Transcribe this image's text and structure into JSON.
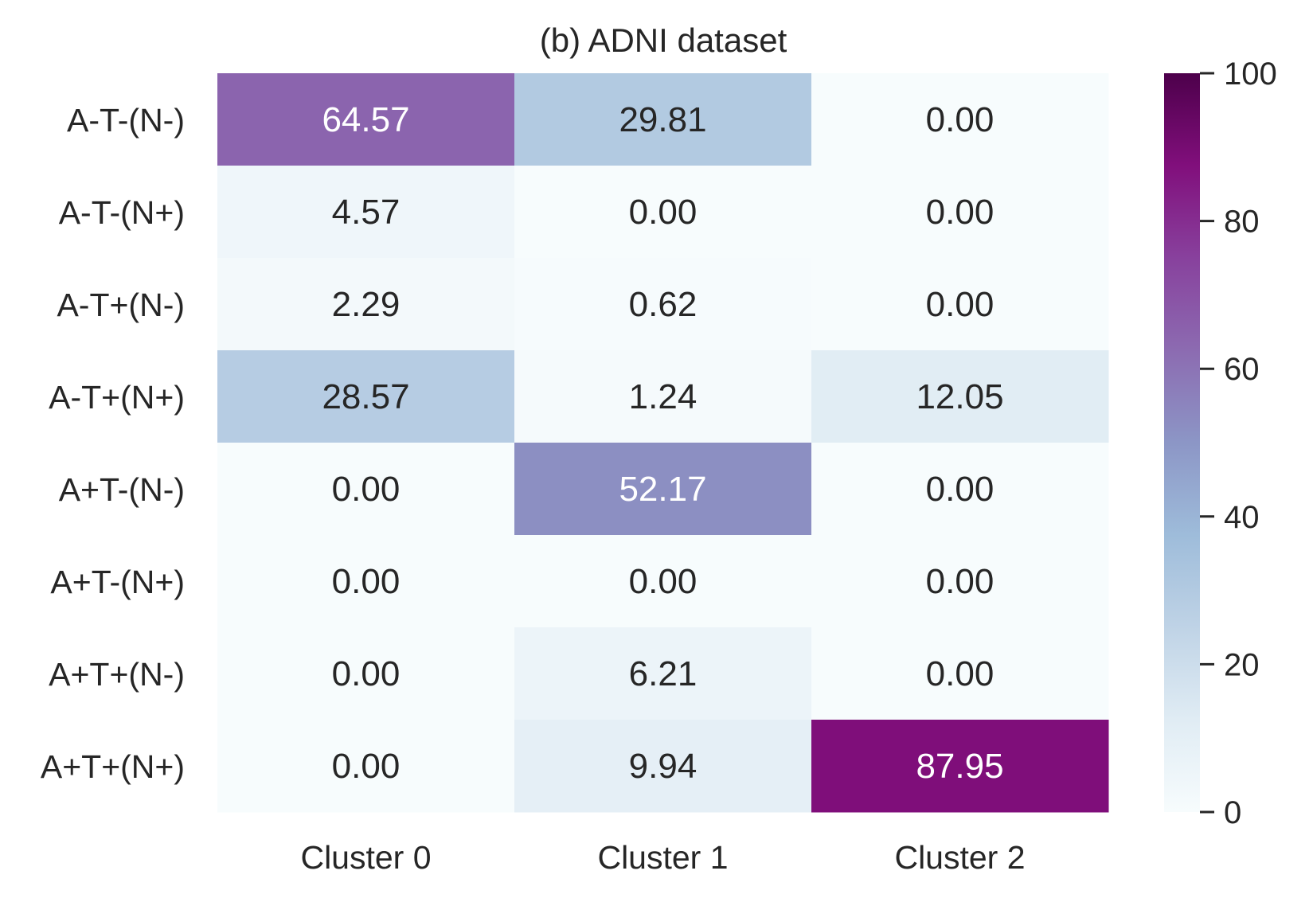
{
  "chart_data": {
    "type": "heatmap",
    "title": "(b) ADNI dataset",
    "xlabel": "",
    "ylabel": "",
    "x_categories": [
      "Cluster 0",
      "Cluster 1",
      "Cluster 2"
    ],
    "y_categories": [
      "A-T-(N-)",
      "A-T-(N+)",
      "A-T+(N-)",
      "A-T+(N+)",
      "A+T-(N-)",
      "A+T-(N+)",
      "A+T+(N-)",
      "A+T+(N+)"
    ],
    "values": [
      [
        64.57,
        29.81,
        0.0
      ],
      [
        4.57,
        0.0,
        0.0
      ],
      [
        2.29,
        0.62,
        0.0
      ],
      [
        28.57,
        1.24,
        12.05
      ],
      [
        0.0,
        52.17,
        0.0
      ],
      [
        0.0,
        0.0,
        0.0
      ],
      [
        0.0,
        6.21,
        0.0
      ],
      [
        0.0,
        9.94,
        87.95
      ]
    ],
    "value_labels": [
      [
        "64.57",
        "29.81",
        "0.00"
      ],
      [
        "4.57",
        "0.00",
        "0.00"
      ],
      [
        "2.29",
        "0.62",
        "0.00"
      ],
      [
        "28.57",
        "1.24",
        "12.05"
      ],
      [
        "0.00",
        "52.17",
        "0.00"
      ],
      [
        "0.00",
        "0.00",
        "0.00"
      ],
      [
        "0.00",
        "6.21",
        "0.00"
      ],
      [
        "0.00",
        "9.94",
        "87.95"
      ]
    ],
    "colorbar": {
      "range": [
        0,
        100
      ],
      "ticks": [
        0,
        20,
        40,
        60,
        80,
        100
      ],
      "tick_labels": [
        "0",
        "20",
        "40",
        "60",
        "80",
        "100"
      ],
      "colormap": "BuPu",
      "colormap_stops": [
        "#f7fcfd",
        "#e0ecf4",
        "#bfd3e6",
        "#9ebcda",
        "#8c96c6",
        "#8c6bb1",
        "#88419d",
        "#810f7c",
        "#4d004b"
      ]
    },
    "text_color_dark": "#262626",
    "text_color_light": "#ffffff",
    "grid": false
  }
}
